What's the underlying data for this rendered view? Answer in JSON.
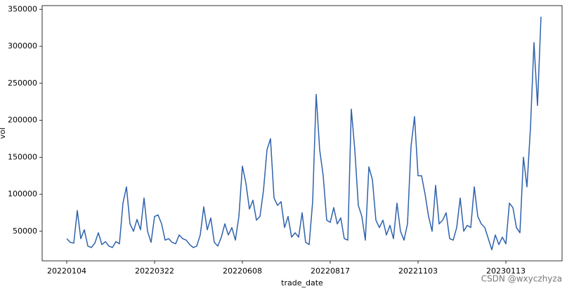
{
  "chart_data": {
    "type": "line",
    "x_label": "trade_date",
    "y_label": "vol",
    "watermark": "CSDN @wxyczhyza",
    "color": "#2f62ad",
    "categories": [
      "20220104",
      null,
      null,
      null,
      null,
      null,
      null,
      null,
      null,
      null,
      null,
      null,
      null,
      null,
      null,
      null,
      null,
      null,
      null,
      null,
      null,
      null,
      null,
      null,
      null,
      "20220322",
      null,
      null,
      null,
      null,
      null,
      null,
      null,
      null,
      null,
      null,
      null,
      null,
      null,
      null,
      null,
      null,
      null,
      null,
      null,
      null,
      null,
      null,
      null,
      null,
      "20220608",
      null,
      null,
      null,
      null,
      null,
      null,
      null,
      null,
      null,
      null,
      null,
      null,
      null,
      null,
      null,
      null,
      null,
      null,
      null,
      null,
      null,
      null,
      null,
      null,
      "20220817",
      null,
      null,
      null,
      null,
      null,
      null,
      null,
      null,
      null,
      null,
      null,
      null,
      null,
      null,
      null,
      null,
      null,
      null,
      null,
      null,
      null,
      null,
      null,
      null,
      "20221103",
      null,
      null,
      null,
      null,
      null,
      null,
      null,
      null,
      null,
      null,
      null,
      null,
      null,
      null,
      null,
      null,
      null,
      null,
      null,
      null,
      null,
      null,
      null,
      null,
      "20230113",
      null,
      null,
      null,
      null,
      null,
      null,
      null,
      null,
      null,
      null
    ],
    "values": [
      40000,
      35000,
      34000,
      78000,
      40000,
      52000,
      30000,
      28000,
      34000,
      48000,
      32000,
      36000,
      30000,
      28000,
      36000,
      33000,
      88000,
      110000,
      60000,
      50000,
      66000,
      52000,
      95000,
      50000,
      35000,
      70000,
      72000,
      60000,
      38000,
      40000,
      35000,
      33000,
      45000,
      40000,
      38000,
      32000,
      28000,
      30000,
      45000,
      83000,
      52000,
      68000,
      35000,
      30000,
      42000,
      60000,
      45000,
      55000,
      38000,
      70000,
      138000,
      115000,
      80000,
      92000,
      65000,
      70000,
      105000,
      160000,
      175000,
      95000,
      85000,
      90000,
      55000,
      70000,
      42000,
      48000,
      42000,
      75000,
      35000,
      32000,
      90000,
      235000,
      160000,
      125000,
      65000,
      62000,
      82000,
      60000,
      68000,
      40000,
      38000,
      215000,
      160000,
      85000,
      70000,
      38000,
      137000,
      120000,
      65000,
      55000,
      65000,
      45000,
      58000,
      40000,
      88000,
      50000,
      38000,
      60000,
      165000,
      205000,
      125000,
      125000,
      100000,
      70000,
      50000,
      112000,
      60000,
      65000,
      75000,
      40000,
      38000,
      55000,
      95000,
      50000,
      58000,
      55000,
      110000,
      70000,
      60000,
      55000,
      40000,
      25000,
      45000,
      32000,
      42000,
      33000,
      88000,
      82000,
      55000,
      48000,
      150000,
      110000,
      190000,
      305000,
      220000,
      340000
    ],
    "xlim": [
      -7,
      141
    ],
    "ylim": [
      10000,
      355000
    ],
    "yticks": [
      50000,
      100000,
      150000,
      200000,
      250000,
      300000,
      350000
    ]
  }
}
